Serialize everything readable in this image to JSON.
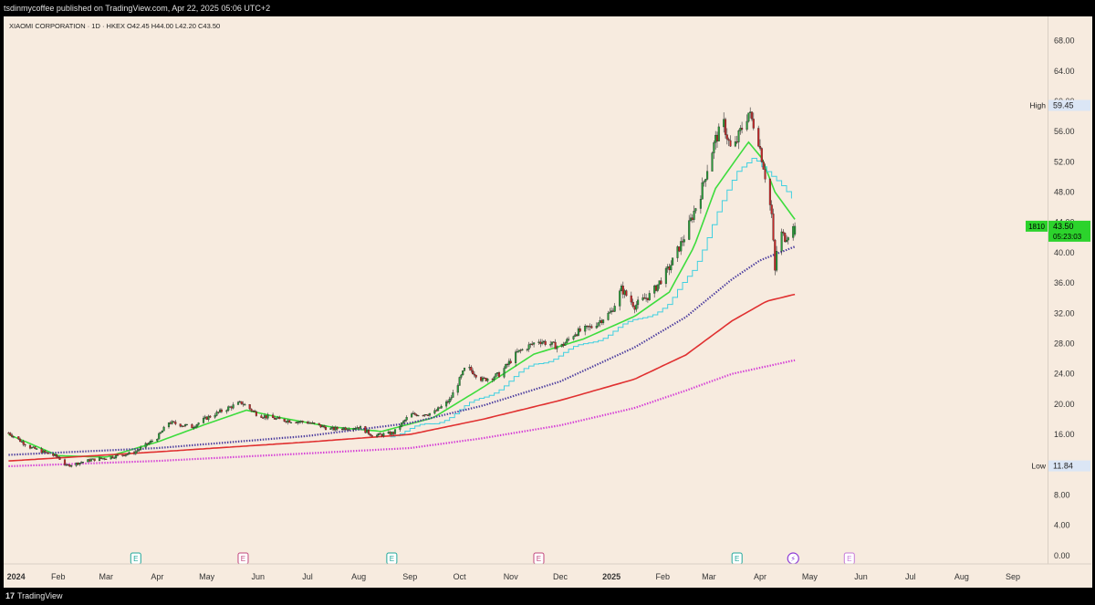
{
  "header": {
    "publisher": "tsdinmycoffee published on TradingView.com, Apr 22, 2025 05:06 UTC+2"
  },
  "legend": {
    "text": "XIAOMI CORPORATION · 1D · HKEX  O42.45  H44.00  L42.20  C43.50"
  },
  "footer": {
    "logo_text": "TradingView",
    "logo_mark": "17"
  },
  "colors": {
    "background": "#f7ebdf",
    "candle_up": "#2a9d3a",
    "candle_down": "#c62828",
    "ma_fast": "#3ddc3d",
    "ma_step": "#3fd0e0",
    "ma_mid": "#4b3c9e",
    "ma_slow": "#e03030",
    "ma_long": "#d43ad6",
    "last_price_bg": "#2cd32c",
    "label_bg": "#dbe6f5"
  },
  "chart_data": {
    "type": "candlestick",
    "symbol": "XIAOMI CORPORATION",
    "interval": "1D",
    "exchange": "HKEX",
    "ohlc_last": {
      "open": "42.45",
      "high": "44.00",
      "low": "42.20",
      "close": "43.50"
    },
    "price_axis": {
      "ticks": [
        "68.00",
        "64.00",
        "60.00",
        "56.00",
        "52.00",
        "48.00",
        "44.00",
        "40.00",
        "36.00",
        "32.00",
        "28.00",
        "24.00",
        "20.00",
        "16.00",
        "12.00",
        "8.00",
        "4.00",
        "0.00"
      ],
      "range": [
        -1.1,
        71.2
      ]
    },
    "time_axis": {
      "labels": [
        "2024",
        "Feb",
        "Mar",
        "Apr",
        "May",
        "Jun",
        "Jul",
        "Aug",
        "Sep",
        "Oct",
        "Nov",
        "Dec",
        "2025",
        "Feb",
        "Mar",
        "Apr",
        "May",
        "Jun",
        "Jul",
        "Aug",
        "Sep"
      ],
      "label_dates": [
        "2024-01-01",
        "2024-02-01",
        "2024-03-01",
        "2024-04-01",
        "2024-05-01",
        "2024-06-01",
        "2024-07-01",
        "2024-08-01",
        "2024-09-01",
        "2024-10-01",
        "2024-11-01",
        "2024-12-01",
        "2025-01-01",
        "2025-02-01",
        "2025-03-01",
        "2025-04-01",
        "2025-05-01",
        "2025-06-01",
        "2025-07-01",
        "2025-08-01",
        "2025-09-01"
      ],
      "range": [
        "2023-12-30",
        "2025-09-22"
      ]
    },
    "price_labels": [
      {
        "label": "High",
        "value": "59.45",
        "type": "high"
      },
      {
        "label": "1810",
        "value": "43.50",
        "sub": "05:23:03",
        "type": "last"
      },
      {
        "label": "Low",
        "value": "11.84",
        "type": "low"
      }
    ],
    "price_path": [
      [
        "2024-01-02",
        16.2
      ],
      [
        "2024-01-15",
        14.3
      ],
      [
        "2024-02-01",
        13.0
      ],
      [
        "2024-02-06",
        11.84
      ],
      [
        "2024-02-20",
        12.6
      ],
      [
        "2024-03-01",
        12.9
      ],
      [
        "2024-03-18",
        13.6
      ],
      [
        "2024-04-01",
        15.6
      ],
      [
        "2024-04-08",
        17.6
      ],
      [
        "2024-04-22",
        17.0
      ],
      [
        "2024-05-01",
        18.2
      ],
      [
        "2024-05-15",
        19.6
      ],
      [
        "2024-05-22",
        20.2
      ],
      [
        "2024-06-01",
        18.6
      ],
      [
        "2024-06-15",
        17.9
      ],
      [
        "2024-07-01",
        17.6
      ],
      [
        "2024-07-15",
        16.7
      ],
      [
        "2024-08-01",
        17.0
      ],
      [
        "2024-08-10",
        15.8
      ],
      [
        "2024-08-22",
        16.2
      ],
      [
        "2024-09-01",
        18.6
      ],
      [
        "2024-09-15",
        18.8
      ],
      [
        "2024-09-25",
        20.5
      ],
      [
        "2024-10-05",
        25.0
      ],
      [
        "2024-10-15",
        23.2
      ],
      [
        "2024-10-25",
        23.9
      ],
      [
        "2024-11-05",
        26.8
      ],
      [
        "2024-11-18",
        28.4
      ],
      [
        "2024-12-01",
        27.5
      ],
      [
        "2024-12-10",
        29.4
      ],
      [
        "2024-12-20",
        30.2
      ],
      [
        "2025-01-01",
        32.2
      ],
      [
        "2025-01-07",
        35.2
      ],
      [
        "2025-01-15",
        33.0
      ],
      [
        "2025-01-25",
        34.5
      ],
      [
        "2025-02-05",
        38.0
      ],
      [
        "2025-02-15",
        42.5
      ],
      [
        "2025-02-24",
        47.8
      ],
      [
        "2025-03-01",
        52.0
      ],
      [
        "2025-03-05",
        55.0
      ],
      [
        "2025-03-10",
        57.0
      ],
      [
        "2025-03-15",
        53.0
      ],
      [
        "2025-03-20",
        56.0
      ],
      [
        "2025-03-25",
        58.5
      ],
      [
        "2025-03-30",
        56.0
      ],
      [
        "2025-04-03",
        51.5
      ],
      [
        "2025-04-08",
        45.0
      ],
      [
        "2025-04-10",
        37.5
      ],
      [
        "2025-04-12",
        43.0
      ],
      [
        "2025-04-16",
        42.0
      ],
      [
        "2025-04-22",
        43.5
      ]
    ],
    "series": [
      {
        "id": "ma_fast",
        "color": "#3ddc3d",
        "style": "line",
        "points": [
          [
            "2024-01-02",
            16.0
          ],
          [
            "2024-02-01",
            13.2
          ],
          [
            "2024-03-01",
            13.0
          ],
          [
            "2024-04-01",
            15.0
          ],
          [
            "2024-05-01",
            17.4
          ],
          [
            "2024-05-25",
            19.2
          ],
          [
            "2024-06-15",
            18.2
          ],
          [
            "2024-07-15",
            17.0
          ],
          [
            "2024-08-15",
            16.4
          ],
          [
            "2024-09-15",
            18.2
          ],
          [
            "2024-10-15",
            22.2
          ],
          [
            "2024-11-15",
            26.6
          ],
          [
            "2024-12-15",
            28.6
          ],
          [
            "2025-01-15",
            31.6
          ],
          [
            "2025-02-05",
            34.8
          ],
          [
            "2025-02-20",
            40.8
          ],
          [
            "2025-03-05",
            48.5
          ],
          [
            "2025-03-18",
            52.5
          ],
          [
            "2025-03-25",
            54.6
          ],
          [
            "2025-04-02",
            52.5
          ],
          [
            "2025-04-10",
            48.0
          ],
          [
            "2025-04-22",
            44.4
          ]
        ]
      },
      {
        "id": "ma_step",
        "color": "#3fd0e0",
        "style": "step",
        "points": [
          [
            "2024-08-20",
            16.0
          ],
          [
            "2024-09-15",
            17.4
          ],
          [
            "2024-10-15",
            20.8
          ],
          [
            "2024-11-15",
            25.2
          ],
          [
            "2024-12-15",
            27.8
          ],
          [
            "2025-01-15",
            31.0
          ],
          [
            "2025-02-05",
            33.2
          ],
          [
            "2025-02-20",
            38.0
          ],
          [
            "2025-03-05",
            45.0
          ],
          [
            "2025-03-18",
            50.5
          ],
          [
            "2025-03-28",
            53.0
          ],
          [
            "2025-04-08",
            50.0
          ],
          [
            "2025-04-22",
            46.5
          ]
        ]
      },
      {
        "id": "ma_mid",
        "color": "#4b3c9e",
        "style": "dotted",
        "points": [
          [
            "2024-01-02",
            13.3
          ],
          [
            "2024-04-01",
            14.2
          ],
          [
            "2024-07-01",
            15.8
          ],
          [
            "2024-09-01",
            17.5
          ],
          [
            "2024-10-15",
            19.8
          ],
          [
            "2024-12-01",
            23.0
          ],
          [
            "2025-01-15",
            27.5
          ],
          [
            "2025-02-15",
            31.5
          ],
          [
            "2025-03-15",
            36.5
          ],
          [
            "2025-04-01",
            39.0
          ],
          [
            "2025-04-22",
            40.8
          ]
        ]
      },
      {
        "id": "ma_slow",
        "color": "#e03030",
        "style": "line",
        "points": [
          [
            "2024-01-02",
            12.5
          ],
          [
            "2024-04-01",
            13.7
          ],
          [
            "2024-07-01",
            15.0
          ],
          [
            "2024-09-01",
            16.0
          ],
          [
            "2024-10-15",
            18.0
          ],
          [
            "2024-12-01",
            20.5
          ],
          [
            "2025-01-15",
            23.3
          ],
          [
            "2025-02-15",
            26.5
          ],
          [
            "2025-03-15",
            31.0
          ],
          [
            "2025-04-05",
            33.6
          ],
          [
            "2025-04-22",
            34.5
          ]
        ]
      },
      {
        "id": "ma_long",
        "color": "#d43ad6",
        "style": "dotted",
        "points": [
          [
            "2024-01-02",
            11.8
          ],
          [
            "2024-04-01",
            12.5
          ],
          [
            "2024-07-01",
            13.5
          ],
          [
            "2024-09-01",
            14.2
          ],
          [
            "2024-10-15",
            15.5
          ],
          [
            "2024-12-01",
            17.2
          ],
          [
            "2025-01-15",
            19.5
          ],
          [
            "2025-02-15",
            21.8
          ],
          [
            "2025-03-15",
            24.0
          ],
          [
            "2025-04-22",
            25.8
          ]
        ]
      }
    ],
    "event_markers": [
      {
        "date": "2024-03-19",
        "kind": "earnings",
        "symbol": "E",
        "color": "#22a89b"
      },
      {
        "date": "2024-05-23",
        "kind": "earnings",
        "symbol": "E",
        "color": "#c2477e"
      },
      {
        "date": "2024-08-21",
        "kind": "earnings",
        "symbol": "E",
        "color": "#22a89b"
      },
      {
        "date": "2024-11-18",
        "kind": "earnings",
        "symbol": "E",
        "color": "#c2477e"
      },
      {
        "date": "2025-03-18",
        "kind": "earnings",
        "symbol": "E",
        "color": "#22a89b"
      },
      {
        "date": "2025-04-21",
        "kind": "split",
        "symbol": "⚡",
        "color": "#8e3bd6"
      },
      {
        "date": "2025-05-25",
        "kind": "earnings",
        "symbol": "E",
        "color": "#c77ad9"
      }
    ]
  }
}
